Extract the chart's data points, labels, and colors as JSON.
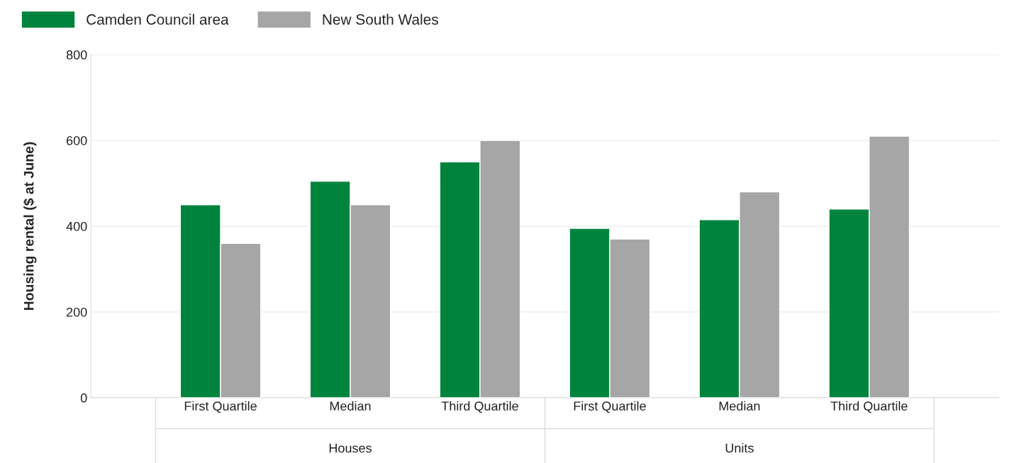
{
  "chart_data": {
    "type": "bar",
    "ylabel": "Housing rental ($ at June)",
    "categories": [
      "First Quartile",
      "Median",
      "Third Quartile",
      "First Quartile",
      "Median",
      "Third Quartile"
    ],
    "series": [
      {
        "name": "Camden Council area",
        "color": "#00843d",
        "values": [
          450,
          505,
          550,
          395,
          415,
          440
        ]
      },
      {
        "name": "New South Wales",
        "color": "#a6a6a6",
        "values": [
          360,
          450,
          600,
          370,
          480,
          610
        ]
      }
    ],
    "ylim": [
      0,
      800
    ],
    "yticks": [
      0,
      200,
      400,
      600,
      800
    ],
    "grid": "y",
    "legend": "top left",
    "annotations": [
      "Houses",
      "Units"
    ]
  }
}
